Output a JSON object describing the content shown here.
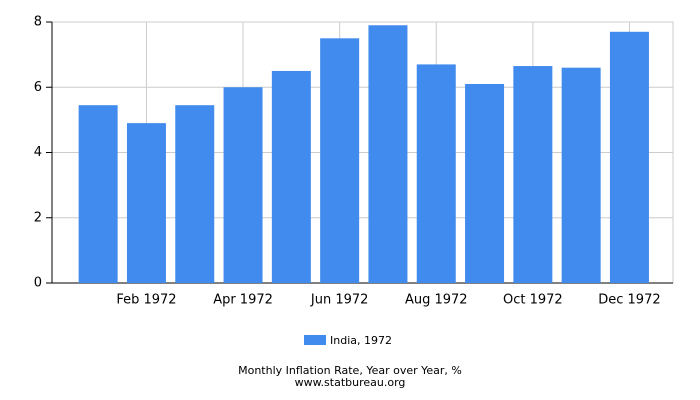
{
  "chart_data": {
    "type": "bar",
    "title": "Monthly Inflation Rate, Year over Year, %",
    "source": "www.statbureau.org",
    "categories": [
      null,
      "Feb 1972",
      null,
      "Apr 1972",
      null,
      "Jun 1972",
      null,
      "Aug 1972",
      null,
      "Oct 1972",
      null,
      "Dec 1972"
    ],
    "series": [
      {
        "name": "India, 1972",
        "color": "#428bee",
        "values": [
          5.45,
          4.9,
          5.45,
          6.0,
          6.5,
          7.5,
          7.9,
          6.7,
          6.1,
          6.65,
          6.6,
          7.7
        ]
      }
    ],
    "ylim": [
      0,
      8
    ],
    "yticks": [
      0,
      2,
      4,
      6,
      8
    ],
    "grid": true
  }
}
